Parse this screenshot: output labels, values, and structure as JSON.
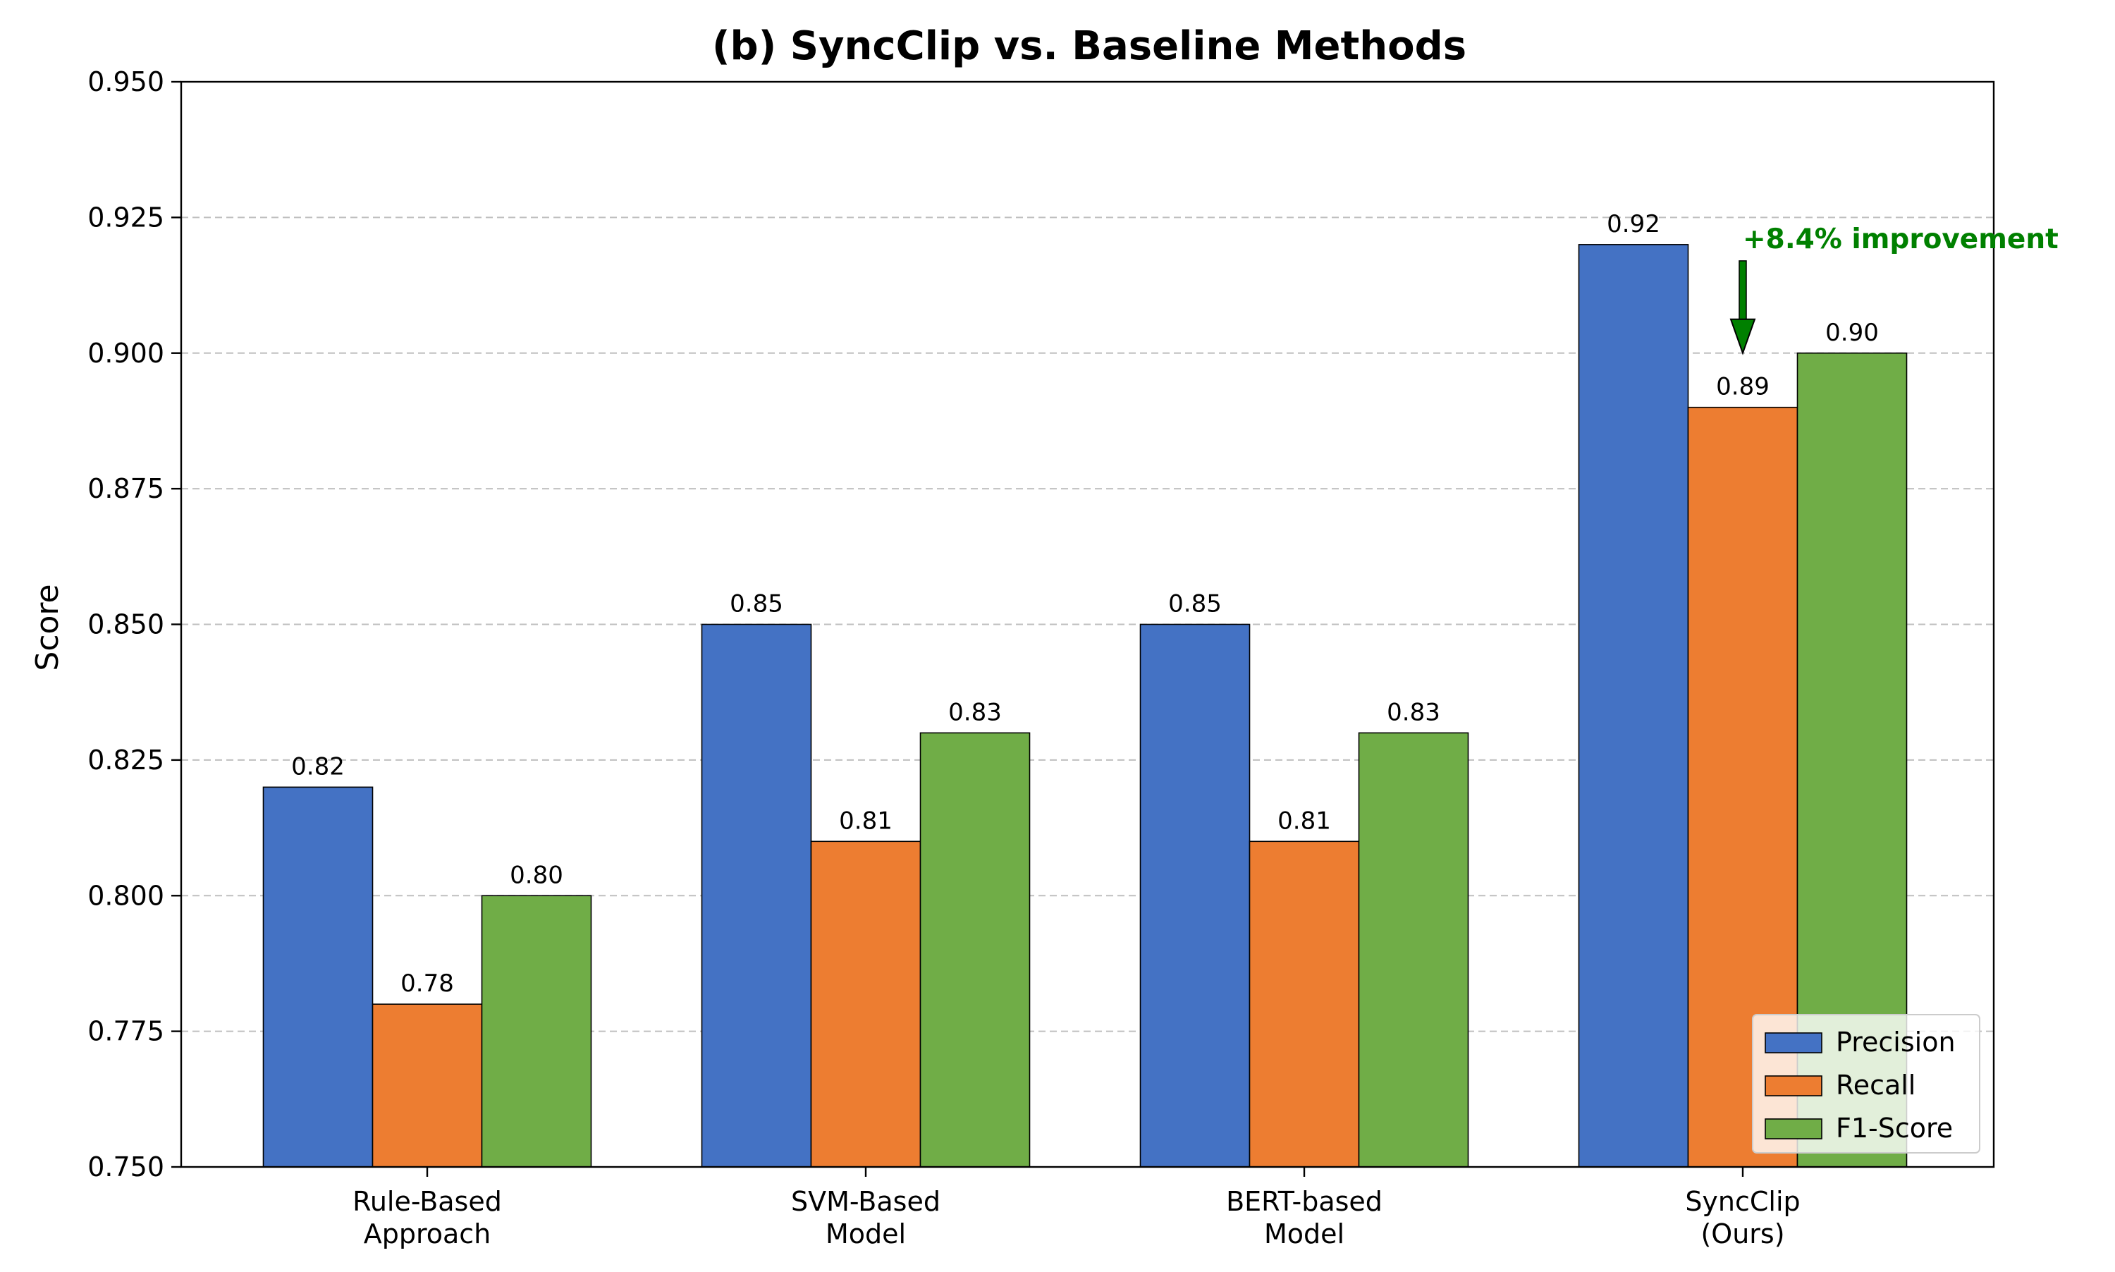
{
  "chart_data": {
    "type": "bar",
    "title": "(b) SyncClip vs. Baseline Methods",
    "xlabel": "",
    "ylabel": "Score",
    "ylim": [
      0.75,
      0.95
    ],
    "yticks": [
      "0.750",
      "0.775",
      "0.800",
      "0.825",
      "0.850",
      "0.875",
      "0.900",
      "0.925",
      "0.950"
    ],
    "ytick_values": [
      0.75,
      0.775,
      0.8,
      0.825,
      0.85,
      0.875,
      0.9,
      0.925,
      0.95
    ],
    "grid": "y-dashed",
    "legend_position": "bottom-right",
    "categories": [
      [
        "Rule-Based",
        "Approach"
      ],
      [
        "SVM-Based",
        "Model"
      ],
      [
        "BERT-based",
        "Model"
      ],
      [
        "SyncClip",
        "(Ours)"
      ]
    ],
    "series": [
      {
        "name": "Precision",
        "color": "#4472C4",
        "values": [
          0.82,
          0.85,
          0.85,
          0.92
        ],
        "labels": [
          "0.82",
          "0.85",
          "0.85",
          "0.92"
        ]
      },
      {
        "name": "Recall",
        "color": "#ED7D31",
        "values": [
          0.78,
          0.81,
          0.81,
          0.89
        ],
        "labels": [
          "0.78",
          "0.81",
          "0.81",
          "0.89"
        ]
      },
      {
        "name": "F1-Score",
        "color": "#70AD47",
        "values": [
          0.8,
          0.83,
          0.83,
          0.9
        ],
        "labels": [
          "0.80",
          "0.83",
          "0.83",
          "0.90"
        ]
      }
    ],
    "annotation": {
      "text": "+8.4% improvement",
      "color": "#008000",
      "category_index": 3,
      "series_index": 1,
      "arrow_from_y": 0.917,
      "arrow_to_y": 0.9
    }
  }
}
